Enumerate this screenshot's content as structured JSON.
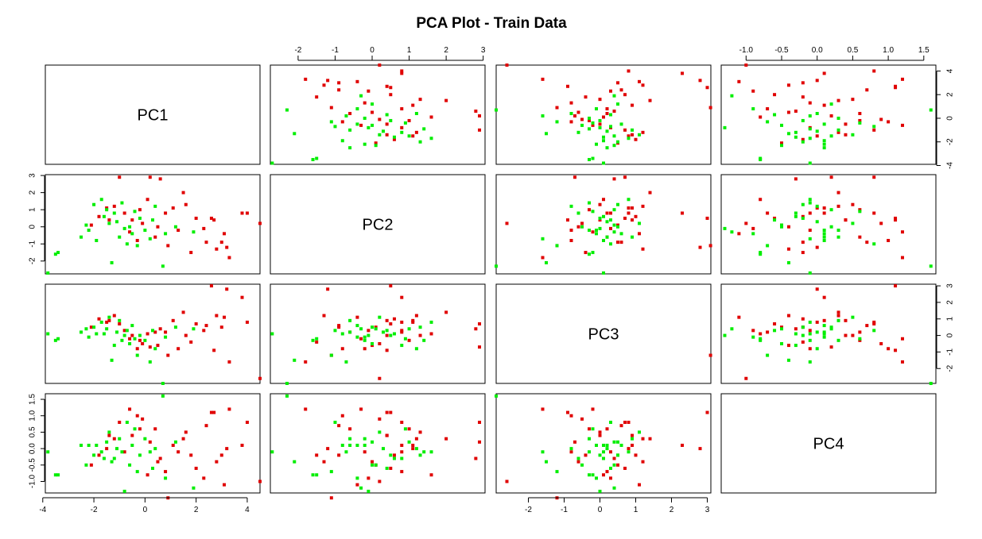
{
  "chart_data": {
    "type": "scatter",
    "title": "PCA Plot - Train Data",
    "variables": [
      "PC1",
      "PC2",
      "PC3",
      "PC4"
    ],
    "ranges": {
      "PC1": [
        -3.9,
        4.5
      ],
      "PC2": [
        -2.75,
        3.05
      ],
      "PC3": [
        -2.9,
        3.1
      ],
      "PC4": [
        -1.35,
        1.67
      ]
    },
    "ticks": {
      "PC1": [
        "-4",
        "-2",
        "0",
        "2",
        "4"
      ],
      "PC2": [
        "-2",
        "-1",
        "0",
        "1",
        "2",
        "3"
      ],
      "PC3": [
        "-2",
        "-1",
        "0",
        "1",
        "2",
        "3"
      ],
      "PC4": [
        "-1.0",
        "-0.5",
        "0.0",
        "0.5",
        "1.0",
        "1.5"
      ]
    },
    "tick_values": {
      "PC1": [
        -4,
        -2,
        0,
        2,
        4
      ],
      "PC2": [
        -2,
        -1,
        0,
        1,
        2,
        3
      ],
      "PC3": [
        -2,
        -1,
        0,
        1,
        2,
        3
      ],
      "PC4": [
        -1.0,
        -0.5,
        0.0,
        0.5,
        1.0,
        1.5
      ]
    },
    "series": [
      {
        "color": "#e00000",
        "points": [
          [
            -2.1,
            0.1,
            0.5,
            -0.5
          ],
          [
            -1.8,
            0.6,
            1.0,
            -0.2
          ],
          [
            -1.5,
            1.1,
            0.8,
            0.0
          ],
          [
            -1.2,
            1.2,
            1.2,
            0.3
          ],
          [
            -1.0,
            2.9,
            0.7,
            0.8
          ],
          [
            -0.8,
            0.8,
            0.3,
            -0.1
          ],
          [
            -0.5,
            0.4,
            0.0,
            0.4
          ],
          [
            -0.2,
            1.0,
            -0.3,
            0.6
          ],
          [
            -0.1,
            0.2,
            -0.5,
            0.9
          ],
          [
            0.2,
            2.9,
            -0.7,
            0.2
          ],
          [
            0.4,
            -0.6,
            0.2,
            0.6
          ],
          [
            0.6,
            2.8,
            0.4,
            -0.3
          ],
          [
            0.8,
            0.8,
            0.2,
            -0.7
          ],
          [
            1.1,
            1.1,
            0.9,
            0.1
          ],
          [
            1.3,
            -0.2,
            -0.8,
            -0.1
          ],
          [
            1.5,
            2.0,
            1.4,
            0.3
          ],
          [
            1.8,
            -1.5,
            -0.4,
            -0.2
          ],
          [
            2.0,
            0.5,
            0.7,
            -0.6
          ],
          [
            2.3,
            -0.1,
            0.3,
            -0.9
          ],
          [
            2.6,
            0.5,
            3.0,
            1.1
          ],
          [
            2.8,
            -1.3,
            1.2,
            -0.4
          ],
          [
            3.0,
            -0.9,
            0.5,
            -0.2
          ],
          [
            3.1,
            -0.4,
            1.1,
            -1.1
          ],
          [
            3.3,
            -1.8,
            -1.6,
            1.2
          ],
          [
            3.8,
            0.8,
            2.3,
            0.1
          ],
          [
            4.0,
            0.8,
            0.8,
            0.8
          ],
          [
            4.5,
            0.2,
            -2.6,
            -1.0
          ],
          [
            -0.3,
            -0.8,
            -0.8,
            1.0
          ],
          [
            0.9,
            -1.1,
            -1.2,
            -1.5
          ],
          [
            1.6,
            1.3,
            0.0,
            0.5
          ],
          [
            2.4,
            -0.9,
            0.6,
            0.7
          ],
          [
            -0.6,
            -0.3,
            -0.2,
            1.2
          ],
          [
            0.1,
            1.6,
            0.1,
            -0.8
          ],
          [
            2.7,
            0.4,
            -0.9,
            1.1
          ],
          [
            -1.4,
            0.4,
            0.9,
            0.4
          ],
          [
            0.5,
            0.0,
            -0.6,
            -0.4
          ],
          [
            3.2,
            -1.2,
            2.8,
            0.0
          ]
        ]
      },
      {
        "color": "#00ee00",
        "points": [
          [
            -3.8,
            -2.7,
            0.1,
            -0.1
          ],
          [
            -3.5,
            -1.6,
            -0.3,
            -0.8
          ],
          [
            -3.4,
            -1.5,
            -0.2,
            -0.8
          ],
          [
            -2.5,
            -0.6,
            0.2,
            0.1
          ],
          [
            -2.3,
            0.1,
            0.4,
            -0.5
          ],
          [
            -2.0,
            1.3,
            0.5,
            -0.2
          ],
          [
            -1.9,
            -0.8,
            0.1,
            0.1
          ],
          [
            -1.7,
            1.6,
            0.8,
            -0.1
          ],
          [
            -1.6,
            0.6,
            0.1,
            -0.3
          ],
          [
            -1.5,
            1.0,
            0.4,
            0.2
          ],
          [
            -1.3,
            -2.1,
            -1.5,
            -0.4
          ],
          [
            -1.1,
            0.3,
            0.2,
            0.0
          ],
          [
            -1.0,
            -0.6,
            0.9,
            0.3
          ],
          [
            -0.9,
            1.4,
            -0.3,
            -0.1
          ],
          [
            -0.7,
            -1.0,
            0.3,
            0.8
          ],
          [
            -0.6,
            0.0,
            -0.5,
            -0.5
          ],
          [
            -0.5,
            -0.4,
            0.6,
            0.1
          ],
          [
            -0.3,
            -1.1,
            -1.2,
            -0.7
          ],
          [
            -0.2,
            0.5,
            0.0,
            -0.2
          ],
          [
            0.0,
            -0.2,
            -0.3,
            0.3
          ],
          [
            0.2,
            -0.7,
            -1.6,
            -0.1
          ],
          [
            0.4,
            1.2,
            -0.8,
            0.0
          ],
          [
            0.7,
            -2.3,
            -2.9,
            1.6
          ],
          [
            0.8,
            -0.4,
            -0.1,
            -0.9
          ],
          [
            1.2,
            0.0,
            0.5,
            0.2
          ],
          [
            1.9,
            -0.3,
            0.4,
            -1.2
          ],
          [
            -2.2,
            -0.2,
            -0.1,
            0.1
          ],
          [
            -1.2,
            0.8,
            -0.6,
            -0.3
          ],
          [
            -0.8,
            -0.1,
            0.0,
            -1.3
          ],
          [
            -0.4,
            0.9,
            -0.2,
            0.6
          ],
          [
            -1.4,
            0.2,
            1.1,
            0.5
          ],
          [
            0.3,
            0.4,
            0.3,
            -0.6
          ]
        ]
      }
    ]
  }
}
